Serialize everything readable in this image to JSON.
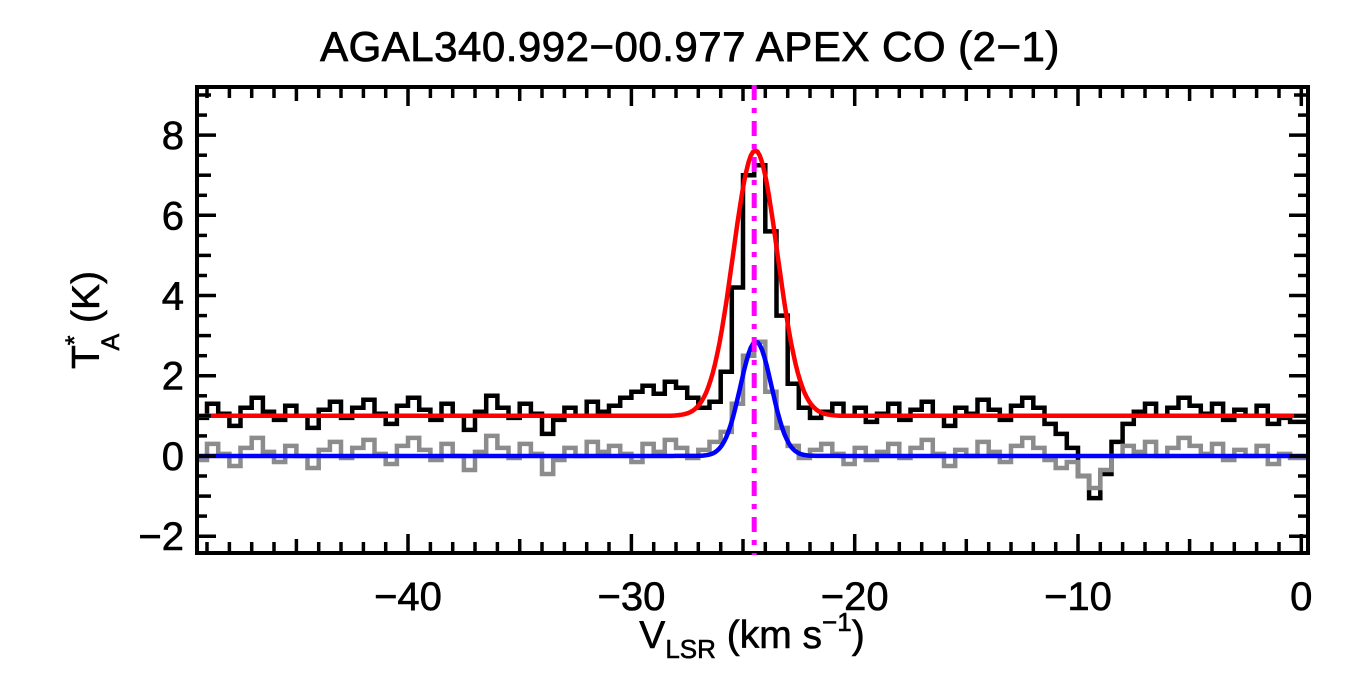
{
  "page": {
    "background": "#ffffff"
  },
  "chart_data": {
    "type": "line",
    "subtype": "spectrum-with-gaussian-fits",
    "title": "AGAL340.992−00.977  APEX CO (2−1)",
    "xlabel": {
      "text": "VLSR (km s−1)",
      "parts": {
        "pre": "V",
        "sub": "LSR",
        "mid": " (km s",
        "sup": "−1",
        "post": ")"
      }
    },
    "ylabel": {
      "text": "TA* (K)",
      "parts": {
        "pre": "T",
        "sup": "*",
        "sub": "A",
        "post": " (K)"
      }
    },
    "xlim": [
      -49.45,
      0.3
    ],
    "ylim": [
      -2.42,
      9.2
    ],
    "grid": false,
    "legend": "none",
    "xticks": {
      "values": [
        -40,
        -30,
        -20,
        -10,
        0
      ],
      "labels": [
        "−40",
        "−30",
        "−20",
        "−10",
        "0"
      ],
      "minor_interval": 1,
      "medium_interval": 5
    },
    "yticks": {
      "values": [
        8,
        6,
        4,
        2,
        0,
        -2
      ],
      "labels": [
        "8",
        "6",
        "4",
        "2",
        "0",
        "−2"
      ],
      "minor_interval": 0.5,
      "medium_interval": 1
    },
    "colors": {
      "observed_spectrum": "#000000",
      "secondary_spectrum": "#8c8c8c",
      "fit_observed": "#ff0000",
      "fit_secondary": "#0000ff",
      "velocity_marker": "#ff00ff"
    },
    "series": [
      {
        "name": "observed CO (2-1) spectrum",
        "style": "histogram-step",
        "color": "#000000",
        "x_start": -49.25,
        "dx": 0.5,
        "values": [
          0.95,
          1.3,
          1.05,
          0.75,
          1.2,
          1.45,
          1.1,
          0.9,
          1.25,
          1.0,
          0.7,
          1.15,
          1.35,
          0.95,
          1.2,
          1.4,
          1.05,
          0.8,
          1.25,
          1.45,
          1.15,
          0.9,
          1.3,
          1.0,
          0.65,
          1.1,
          1.5,
          1.2,
          0.95,
          1.3,
          1.05,
          0.55,
          0.9,
          1.2,
          1.0,
          1.35,
          1.1,
          1.25,
          1.45,
          1.6,
          1.75,
          1.55,
          1.85,
          1.7,
          1.45,
          1.2,
          1.35,
          2.1,
          4.2,
          7.0,
          7.25,
          5.6,
          3.5,
          1.8,
          1.2,
          0.95,
          1.1,
          1.3,
          1.0,
          1.2,
          0.85,
          1.05,
          1.3,
          0.9,
          1.15,
          1.35,
          1.0,
          0.75,
          1.2,
          1.05,
          1.4,
          1.15,
          0.9,
          1.25,
          1.45,
          1.2,
          0.8,
          0.55,
          0.2,
          -0.5,
          -1.05,
          -0.45,
          0.35,
          0.8,
          1.1,
          1.3,
          1.0,
          1.2,
          1.45,
          1.25,
          1.05,
          1.3,
          0.9,
          1.15,
          1.0,
          1.25,
          0.8,
          0.95,
          0.85
        ]
      },
      {
        "name": "secondary spectrum (baseline 0)",
        "style": "histogram-step",
        "color": "#8c8c8c",
        "x_start": -49.25,
        "dx": 0.5,
        "values": [
          -0.1,
          0.3,
          0.05,
          -0.25,
          0.2,
          0.45,
          0.1,
          -0.15,
          0.25,
          0.0,
          -0.3,
          0.15,
          0.35,
          -0.05,
          0.2,
          0.4,
          0.05,
          -0.2,
          0.25,
          0.45,
          0.15,
          -0.1,
          0.3,
          0.0,
          -0.35,
          0.1,
          0.5,
          0.2,
          -0.05,
          0.3,
          0.05,
          -0.45,
          -0.1,
          0.2,
          0.0,
          0.35,
          0.1,
          0.25,
          0.05,
          -0.15,
          0.3,
          0.1,
          0.4,
          0.2,
          -0.05,
          0.15,
          0.35,
          0.6,
          1.3,
          2.5,
          2.85,
          1.6,
          0.7,
          0.25,
          -0.05,
          0.15,
          0.3,
          0.05,
          -0.2,
          0.2,
          -0.1,
          0.1,
          0.3,
          -0.05,
          0.2,
          0.4,
          0.05,
          -0.25,
          0.15,
          0.0,
          0.35,
          0.1,
          -0.15,
          0.25,
          0.45,
          0.2,
          -0.1,
          -0.3,
          -0.15,
          -0.5,
          -0.8,
          -0.35,
          0.0,
          0.25,
          0.1,
          0.35,
          0.0,
          0.2,
          0.45,
          0.25,
          0.05,
          0.3,
          -0.1,
          0.15,
          0.0,
          0.25,
          -0.2,
          0.05,
          -0.05
        ]
      }
    ],
    "fits": [
      {
        "name": "gaussian fit to observed spectrum",
        "color": "#ff0000",
        "baseline": 1.0,
        "amplitude": 6.62,
        "center": -24.45,
        "fwhm": 2.35
      },
      {
        "name": "gaussian fit to secondary spectrum",
        "color": "#0000ff",
        "baseline": 0.0,
        "amplitude": 2.85,
        "center": -24.42,
        "fwhm": 1.65
      }
    ],
    "vline": {
      "x": -24.5,
      "color": "#ff00ff",
      "style": "dash-dot",
      "name": "systemic velocity marker"
    }
  }
}
